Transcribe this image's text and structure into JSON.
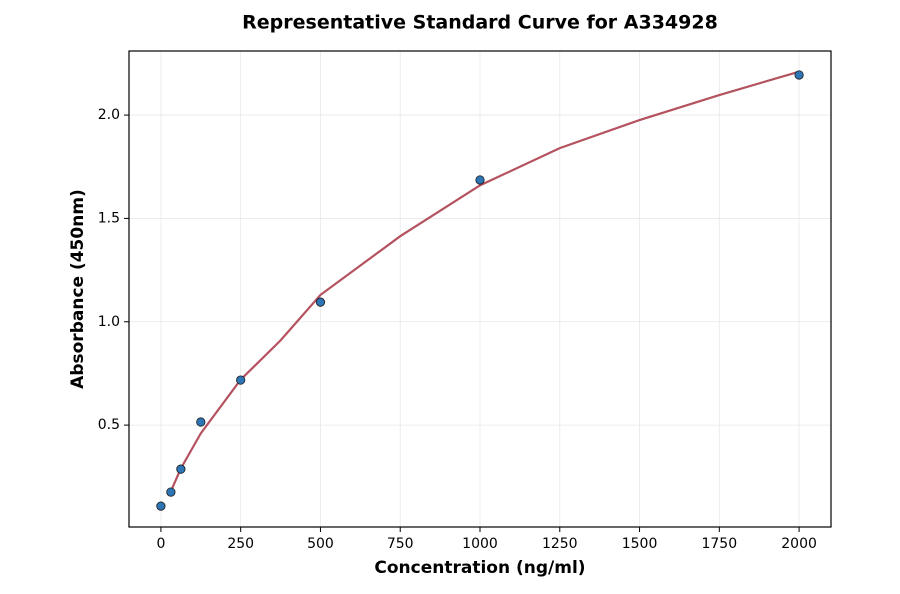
{
  "chart_data": {
    "type": "scatter",
    "title": "Representative Standard Curve for A334928",
    "x_label": "Concentration (ng/ml)",
    "y_label": "Absorbance (450nm)",
    "series": [
      {
        "style": "markers",
        "color": "#2e75b6",
        "x": [
          0,
          31.25,
          62.5,
          125,
          250,
          500,
          1000,
          2000
        ],
        "values": [
          0.108,
          0.176,
          0.287,
          0.515,
          0.718,
          1.095,
          1.686,
          2.194
        ]
      },
      {
        "style": "line",
        "color": "#b5525f",
        "x": [
          31.25,
          62.5,
          125,
          250,
          375,
          500,
          750,
          1000,
          1250,
          1500,
          1750,
          2000
        ],
        "values": [
          0.18,
          0.29,
          0.46,
          0.72,
          0.91,
          1.13,
          1.414,
          1.66,
          1.84,
          1.976,
          2.097,
          2.21
        ]
      }
    ],
    "xlim": [
      -100,
      2100
    ],
    "xticks": [
      0,
      250,
      500,
      750,
      1000,
      1250,
      1500,
      1750,
      2000
    ],
    "ylim": [
      0.007,
      2.31
    ],
    "yticks": [
      0.5,
      {
        "value": 1.0,
        "label": "1.0"
      },
      1.5,
      {
        "value": 2.0,
        "label": "2.0"
      }
    ],
    "grid": true
  }
}
